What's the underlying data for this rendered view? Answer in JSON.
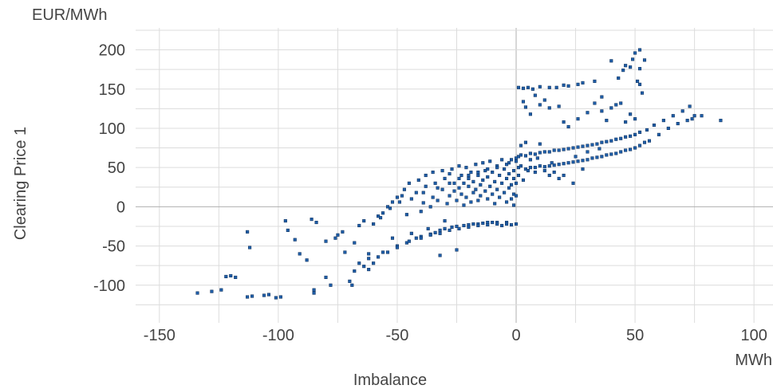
{
  "chart_data": {
    "type": "scatter",
    "title": "",
    "xlabel": "Imbalance",
    "ylabel": "Clearing Price 1",
    "x_unit": "MWh",
    "y_unit": "EUR/MWh",
    "xlim": [
      -160,
      108
    ],
    "ylim": [
      -148,
      228
    ],
    "x_ticks": [
      -150,
      -100,
      -50,
      0,
      50,
      100
    ],
    "x_tick_labels": [
      "-150",
      "-100",
      "-50",
      "0",
      "50",
      "100"
    ],
    "y_ticks": [
      -100,
      -50,
      0,
      50,
      100,
      150,
      200
    ],
    "y_tick_labels": [
      "-100",
      "-50",
      "0",
      "50",
      "100",
      "150",
      "200"
    ],
    "grid": true,
    "legend": "none",
    "color": "#1f5ea8",
    "series": [
      {
        "points": [
          [
            -134,
            -110
          ],
          [
            -128,
            -108
          ],
          [
            -124,
            -106
          ],
          [
            -122,
            -89
          ],
          [
            -120,
            -88
          ],
          [
            -118,
            -90
          ],
          [
            -113,
            -32
          ],
          [
            -112,
            -52
          ],
          [
            -113,
            -115
          ],
          [
            -111,
            -114
          ],
          [
            -106,
            -113
          ],
          [
            -104,
            -112
          ],
          [
            -101,
            -116
          ],
          [
            -99,
            -115
          ],
          [
            -97,
            -18
          ],
          [
            -96,
            -30
          ],
          [
            -93,
            -42
          ],
          [
            -91,
            -60
          ],
          [
            -88,
            -68
          ],
          [
            -86,
            -16
          ],
          [
            -84,
            -20
          ],
          [
            -85,
            -106
          ],
          [
            -85,
            -110
          ],
          [
            -80,
            -90
          ],
          [
            -78,
            -100
          ],
          [
            -76,
            -40
          ],
          [
            -73,
            -32
          ],
          [
            -70,
            -95
          ],
          [
            -68,
            -82
          ],
          [
            -66,
            -24
          ],
          [
            -64,
            -18
          ],
          [
            -62,
            -60
          ],
          [
            -62,
            -80
          ],
          [
            -60,
            -72
          ],
          [
            -58,
            -12
          ],
          [
            -58,
            -64
          ],
          [
            -56,
            -8
          ],
          [
            -54,
            0
          ],
          [
            -54,
            -58
          ],
          [
            -52,
            6
          ],
          [
            -52,
            -40
          ],
          [
            -50,
            12
          ],
          [
            -50,
            -50
          ],
          [
            -48,
            14
          ],
          [
            -47,
            22
          ],
          [
            -46,
            -10
          ],
          [
            -46,
            -46
          ],
          [
            -45,
            30
          ],
          [
            -44,
            -34
          ],
          [
            -42,
            -40
          ],
          [
            -42,
            18
          ],
          [
            -41,
            34
          ],
          [
            -40,
            -6
          ],
          [
            -40,
            -38
          ],
          [
            -39,
            5
          ],
          [
            -38,
            40
          ],
          [
            -38,
            26
          ],
          [
            -37,
            -28
          ],
          [
            -36,
            0
          ],
          [
            -36,
            -35
          ],
          [
            -35,
            44
          ],
          [
            -35,
            12
          ],
          [
            -34,
            -33
          ],
          [
            -34,
            30
          ],
          [
            -33,
            8
          ],
          [
            -32,
            -62
          ],
          [
            -32,
            -30
          ],
          [
            -31,
            46
          ],
          [
            -31,
            22
          ],
          [
            -30,
            -18
          ],
          [
            -30,
            -28
          ],
          [
            -30,
            36
          ],
          [
            -29,
            4
          ],
          [
            -28,
            42
          ],
          [
            -28,
            14
          ],
          [
            -27,
            -26
          ],
          [
            -27,
            48
          ],
          [
            -26,
            30
          ],
          [
            -26,
            20
          ],
          [
            -25,
            -55
          ],
          [
            -25,
            8
          ],
          [
            -25,
            -25
          ],
          [
            -24,
            52
          ],
          [
            -24,
            24
          ],
          [
            -23,
            40
          ],
          [
            -23,
            16
          ],
          [
            -22,
            -24
          ],
          [
            -22,
            30
          ],
          [
            -22,
            2
          ],
          [
            -21,
            50
          ],
          [
            -21,
            12
          ],
          [
            -20,
            -23
          ],
          [
            -20,
            36
          ],
          [
            -20,
            26
          ],
          [
            -19,
            44
          ],
          [
            -19,
            6
          ],
          [
            -18,
            -22
          ],
          [
            -18,
            32
          ],
          [
            -18,
            18
          ],
          [
            -17,
            54
          ],
          [
            -17,
            22
          ],
          [
            -16,
            8
          ],
          [
            -16,
            -22
          ],
          [
            -16,
            40
          ],
          [
            -15,
            28
          ],
          [
            -15,
            14
          ],
          [
            -14,
            56
          ],
          [
            -14,
            -21
          ],
          [
            -14,
            34
          ],
          [
            -13,
            46
          ],
          [
            -13,
            20
          ],
          [
            -12,
            -20
          ],
          [
            -12,
            10
          ],
          [
            -12,
            38
          ],
          [
            -11,
            58
          ],
          [
            -11,
            26
          ],
          [
            -10,
            -20
          ],
          [
            -10,
            44
          ],
          [
            -10,
            16
          ],
          [
            -9,
            4
          ],
          [
            -9,
            32
          ],
          [
            -8,
            52
          ],
          [
            -8,
            -20
          ],
          [
            -8,
            22
          ],
          [
            -7,
            40
          ],
          [
            -7,
            12
          ],
          [
            -6,
            60
          ],
          [
            -6,
            -24
          ],
          [
            -6,
            30
          ],
          [
            -5,
            48
          ],
          [
            -5,
            18
          ],
          [
            -4,
            6
          ],
          [
            -4,
            36
          ],
          [
            -4,
            -20
          ],
          [
            -3,
            56
          ],
          [
            -3,
            24
          ],
          [
            -3,
            42
          ],
          [
            -2,
            10
          ],
          [
            -2,
            60
          ],
          [
            -2,
            28
          ],
          [
            -2,
            -23
          ],
          [
            -1,
            46
          ],
          [
            -1,
            16
          ],
          [
            -1,
            36
          ],
          [
            -1,
            2
          ],
          [
            0,
            58
          ],
          [
            0,
            -22
          ],
          [
            0,
            30
          ],
          [
            0,
            14
          ],
          [
            0,
            62
          ],
          [
            -60,
            -22
          ],
          [
            -57,
            -14
          ],
          [
            -53,
            -2
          ],
          [
            -49,
            6
          ],
          [
            -44,
            10
          ],
          [
            -39,
            18
          ],
          [
            -33,
            24
          ],
          [
            -28,
            30
          ],
          [
            -24,
            36
          ],
          [
            -20,
            40
          ],
          [
            -16,
            44
          ],
          [
            -12,
            48
          ],
          [
            -8,
            50
          ],
          [
            -4,
            54
          ],
          [
            -56,
            -58
          ],
          [
            -50,
            -52
          ],
          [
            -45,
            -44
          ],
          [
            -40,
            -40
          ],
          [
            -36,
            -36
          ],
          [
            -32,
            -34
          ],
          [
            -28,
            -30
          ],
          [
            -24,
            -28
          ],
          [
            -20,
            -26
          ],
          [
            -16,
            -24
          ],
          [
            -12,
            -23
          ],
          [
            -8,
            -22
          ],
          [
            -4,
            -22
          ],
          [
            -66,
            -72
          ],
          [
            -64,
            -76
          ],
          [
            -62,
            -66
          ],
          [
            -75,
            -36
          ],
          [
            -72,
            -58
          ],
          [
            -69,
            -100
          ],
          [
            -68,
            -46
          ],
          [
            -80,
            -44
          ],
          [
            1,
            152
          ],
          [
            3,
            151
          ],
          [
            5,
            152
          ],
          [
            7,
            150
          ],
          [
            10,
            153
          ],
          [
            14,
            152
          ],
          [
            17,
            152
          ],
          [
            20,
            155
          ],
          [
            22,
            154
          ],
          [
            26,
            156
          ],
          [
            28,
            158
          ],
          [
            33,
            160
          ],
          [
            3,
            134
          ],
          [
            4,
            127
          ],
          [
            6,
            118
          ],
          [
            8,
            142
          ],
          [
            10,
            130
          ],
          [
            12,
            136
          ],
          [
            14,
            126
          ],
          [
            18,
            128
          ],
          [
            20,
            108
          ],
          [
            22,
            102
          ],
          [
            26,
            112
          ],
          [
            30,
            120
          ],
          [
            33,
            132
          ],
          [
            36,
            140
          ],
          [
            38,
            110
          ],
          [
            40,
            126
          ],
          [
            42,
            130
          ],
          [
            44,
            132
          ],
          [
            46,
            108
          ],
          [
            48,
            118
          ],
          [
            50,
            112
          ],
          [
            52,
            156
          ],
          [
            46,
            180
          ],
          [
            48,
            178
          ],
          [
            50,
            196
          ],
          [
            51,
            160
          ],
          [
            49,
            188
          ],
          [
            52,
            176
          ],
          [
            40,
            186
          ],
          [
            43,
            164
          ],
          [
            45,
            174
          ],
          [
            52,
            200
          ],
          [
            54,
            187
          ],
          [
            53,
            145
          ],
          [
            36,
            122
          ],
          [
            1,
            64
          ],
          [
            2,
            66
          ],
          [
            4,
            65
          ],
          [
            6,
            68
          ],
          [
            8,
            67
          ],
          [
            10,
            69
          ],
          [
            12,
            70
          ],
          [
            14,
            70
          ],
          [
            16,
            72
          ],
          [
            18,
            72
          ],
          [
            20,
            73
          ],
          [
            22,
            74
          ],
          [
            24,
            75
          ],
          [
            26,
            76
          ],
          [
            28,
            77
          ],
          [
            30,
            78
          ],
          [
            32,
            79
          ],
          [
            34,
            80
          ],
          [
            36,
            82
          ],
          [
            38,
            83
          ],
          [
            40,
            84
          ],
          [
            42,
            86
          ],
          [
            44,
            87
          ],
          [
            46,
            89
          ],
          [
            48,
            90
          ],
          [
            50,
            92
          ],
          [
            52,
            95
          ],
          [
            55,
            98
          ],
          [
            58,
            104
          ],
          [
            62,
            110
          ],
          [
            66,
            116
          ],
          [
            70,
            122
          ],
          [
            73,
            128
          ],
          [
            75,
            116
          ],
          [
            78,
            116
          ],
          [
            86,
            110
          ],
          [
            74,
            112
          ],
          [
            1,
            50
          ],
          [
            2,
            52
          ],
          [
            4,
            48
          ],
          [
            6,
            50
          ],
          [
            8,
            50
          ],
          [
            10,
            52
          ],
          [
            12,
            51
          ],
          [
            14,
            52
          ],
          [
            16,
            53
          ],
          [
            18,
            54
          ],
          [
            20,
            55
          ],
          [
            22,
            56
          ],
          [
            24,
            57
          ],
          [
            26,
            58
          ],
          [
            28,
            59
          ],
          [
            30,
            60
          ],
          [
            32,
            62
          ],
          [
            34,
            63
          ],
          [
            36,
            64
          ],
          [
            38,
            66
          ],
          [
            40,
            67
          ],
          [
            42,
            68
          ],
          [
            44,
            70
          ],
          [
            46,
            72
          ],
          [
            48,
            73
          ],
          [
            50,
            75
          ],
          [
            52,
            78
          ],
          [
            54,
            82
          ],
          [
            56,
            84
          ],
          [
            60,
            92
          ],
          [
            64,
            100
          ],
          [
            68,
            106
          ],
          [
            72,
            110
          ],
          [
            1,
            40
          ],
          [
            2,
            78
          ],
          [
            4,
            82
          ],
          [
            6,
            60
          ],
          [
            8,
            44
          ],
          [
            10,
            80
          ],
          [
            12,
            46
          ],
          [
            14,
            40
          ],
          [
            16,
            44
          ],
          [
            18,
            36
          ],
          [
            20,
            40
          ],
          [
            24,
            30
          ],
          [
            28,
            48
          ],
          [
            3,
            34
          ],
          [
            5,
            46
          ],
          [
            9,
            62
          ],
          [
            15,
            56
          ],
          [
            25,
            64
          ],
          [
            30,
            70
          ],
          [
            35,
            74
          ]
        ]
      }
    ]
  }
}
